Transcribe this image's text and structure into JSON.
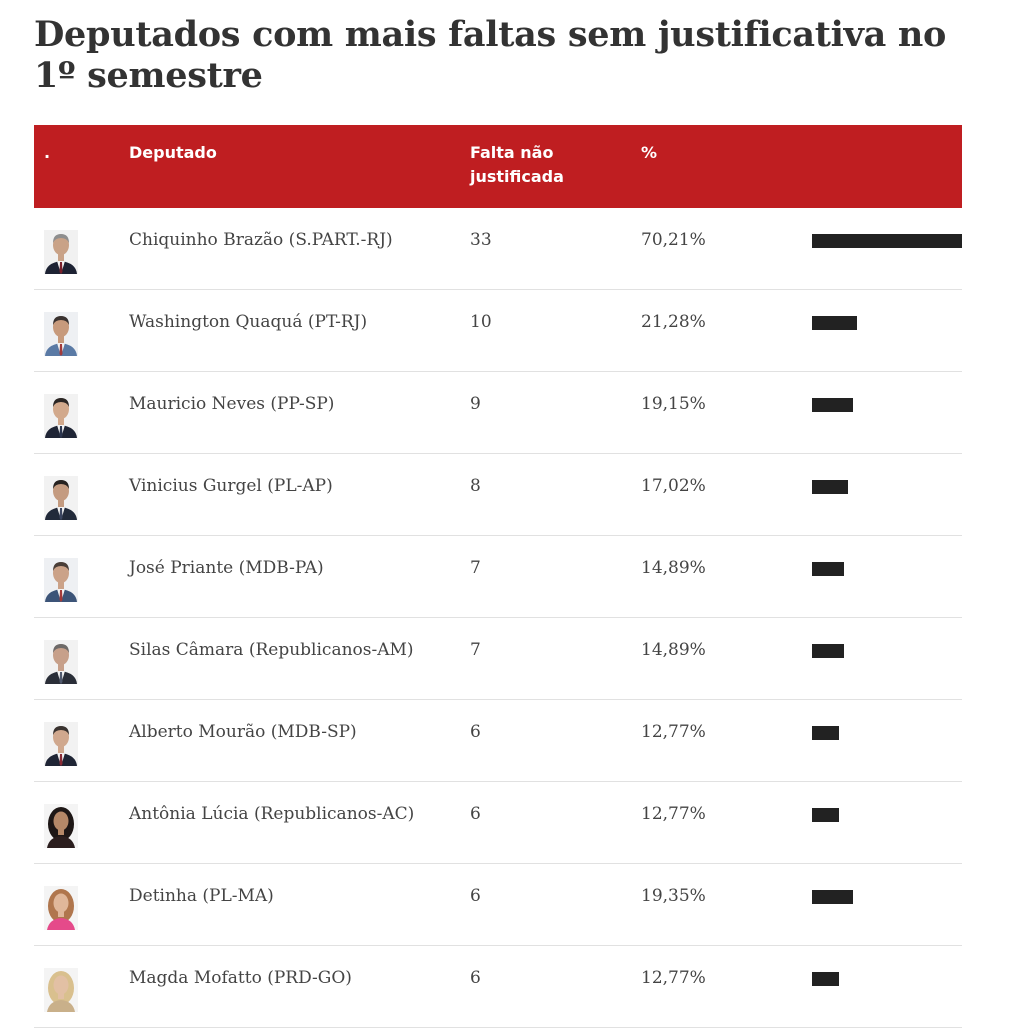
{
  "title": "Deputados com mais faltas sem justificativa no 1º semestre",
  "colors": {
    "header_bg": "#bf1e21",
    "bar": "#222222"
  },
  "table": {
    "headers": {
      "dot": ".",
      "deputado": "Deputado",
      "falta": "Falta não justificada",
      "pct": "%"
    }
  },
  "chart_data": {
    "type": "bar",
    "title": "Deputados com mais faltas sem justificativa no 1º semestre",
    "orientation": "horizontal",
    "categories": [
      "Chiquinho Brazão (S.PART.-RJ)",
      "Washington Quaquá (PT-RJ)",
      "Mauricio Neves (PP-SP)",
      "Vinicius Gurgel (PL-AP)",
      "José Priante (MDB-PA)",
      "Silas Câmara (Republicanos-AM)",
      "Alberto Mourão (MDB-SP)",
      "Antônia Lúcia (Republicanos-AC)",
      "Detinha (PL-MA)",
      "Magda Mofatto (PRD-GO)"
    ],
    "falta_nao_justificada": [
      33,
      10,
      9,
      8,
      7,
      7,
      6,
      6,
      6,
      6
    ],
    "percent_labels": [
      "70,21%",
      "21,28%",
      "19,15%",
      "17,02%",
      "14,89%",
      "14,89%",
      "12,77%",
      "12,77%",
      "19,35%",
      "12,77%"
    ],
    "values": [
      70.21,
      21.28,
      19.15,
      17.02,
      14.89,
      14.89,
      12.77,
      12.77,
      19.35,
      12.77
    ],
    "xlim": [
      0,
      70.21
    ]
  },
  "rows": [
    {
      "name": "Chiquinho Brazão (S.PART.-RJ)",
      "falta": "33",
      "pct": "70,21%",
      "value": 70.21,
      "avatar": {
        "skin": "#c9a287",
        "hair": "#8e8e8e",
        "suit": "#1d2233",
        "tie": "#7a1f2b",
        "bg": "#f1f1f1",
        "female": false
      }
    },
    {
      "name": "Washington Quaquá (PT-RJ)",
      "falta": "10",
      "pct": "21,28%",
      "value": 21.28,
      "avatar": {
        "skin": "#c79a7c",
        "hair": "#3a3230",
        "suit": "#5a7aa5",
        "tie": "#a33a3a",
        "bg": "#eef0f3",
        "female": false
      }
    },
    {
      "name": "Mauricio Neves (PP-SP)",
      "falta": "9",
      "pct": "19,15%",
      "value": 19.15,
      "avatar": {
        "skin": "#d2a98c",
        "hair": "#2b2624",
        "suit": "#1f2535",
        "tie": "#2d3750",
        "bg": "#f2f2f2",
        "female": false
      }
    },
    {
      "name": "Vinicius Gurgel (PL-AP)",
      "falta": "8",
      "pct": "17,02%",
      "value": 17.02,
      "avatar": {
        "skin": "#c49b80",
        "hair": "#262220",
        "suit": "#222a3a",
        "tie": "#3b4560",
        "bg": "#f2f2f2",
        "female": false
      }
    },
    {
      "name": "José Priante (MDB-PA)",
      "falta": "7",
      "pct": "14,89%",
      "value": 14.89,
      "avatar": {
        "skin": "#cba288",
        "hair": "#4a3e38",
        "suit": "#3c5478",
        "tie": "#a33a3a",
        "bg": "#eef0f3",
        "female": false
      }
    },
    {
      "name": "Silas Câmara (Republicanos-AM)",
      "falta": "7",
      "pct": "14,89%",
      "value": 14.89,
      "avatar": {
        "skin": "#c7a08a",
        "hair": "#6e6a68",
        "suit": "#2a2e38",
        "tie": "#50596e",
        "bg": "#f2f2f2",
        "female": false
      }
    },
    {
      "name": "Alberto Mourão (MDB-SP)",
      "falta": "6",
      "pct": "12,77%",
      "value": 12.77,
      "avatar": {
        "skin": "#d0a88e",
        "hair": "#3a3330",
        "suit": "#1f2535",
        "tie": "#8a2a35",
        "bg": "#f2f2f2",
        "female": false
      }
    },
    {
      "name": "Antônia Lúcia (Republicanos-AC)",
      "falta": "6",
      "pct": "12,77%",
      "value": 12.77,
      "avatar": {
        "skin": "#b58868",
        "hair": "#1e1716",
        "suit": "#2b1e1e",
        "tie": "#2b1e1e",
        "bg": "#f4f4f4",
        "female": true
      }
    },
    {
      "name": "Detinha (PL-MA)",
      "falta": "6",
      "pct": "19,35%",
      "value": 19.35,
      "avatar": {
        "skin": "#e0b79a",
        "hair": "#b0764d",
        "suit": "#e54a8a",
        "tie": "#e54a8a",
        "bg": "#f4f4f4",
        "female": true
      }
    },
    {
      "name": "Magda Mofatto (PRD-GO)",
      "falta": "6",
      "pct": "12,77%",
      "value": 12.77,
      "avatar": {
        "skin": "#e2c0a4",
        "hair": "#d9c08e",
        "suit": "#c9b08a",
        "tie": "#c9b08a",
        "bg": "#f4f4f4",
        "female": true
      }
    }
  ]
}
